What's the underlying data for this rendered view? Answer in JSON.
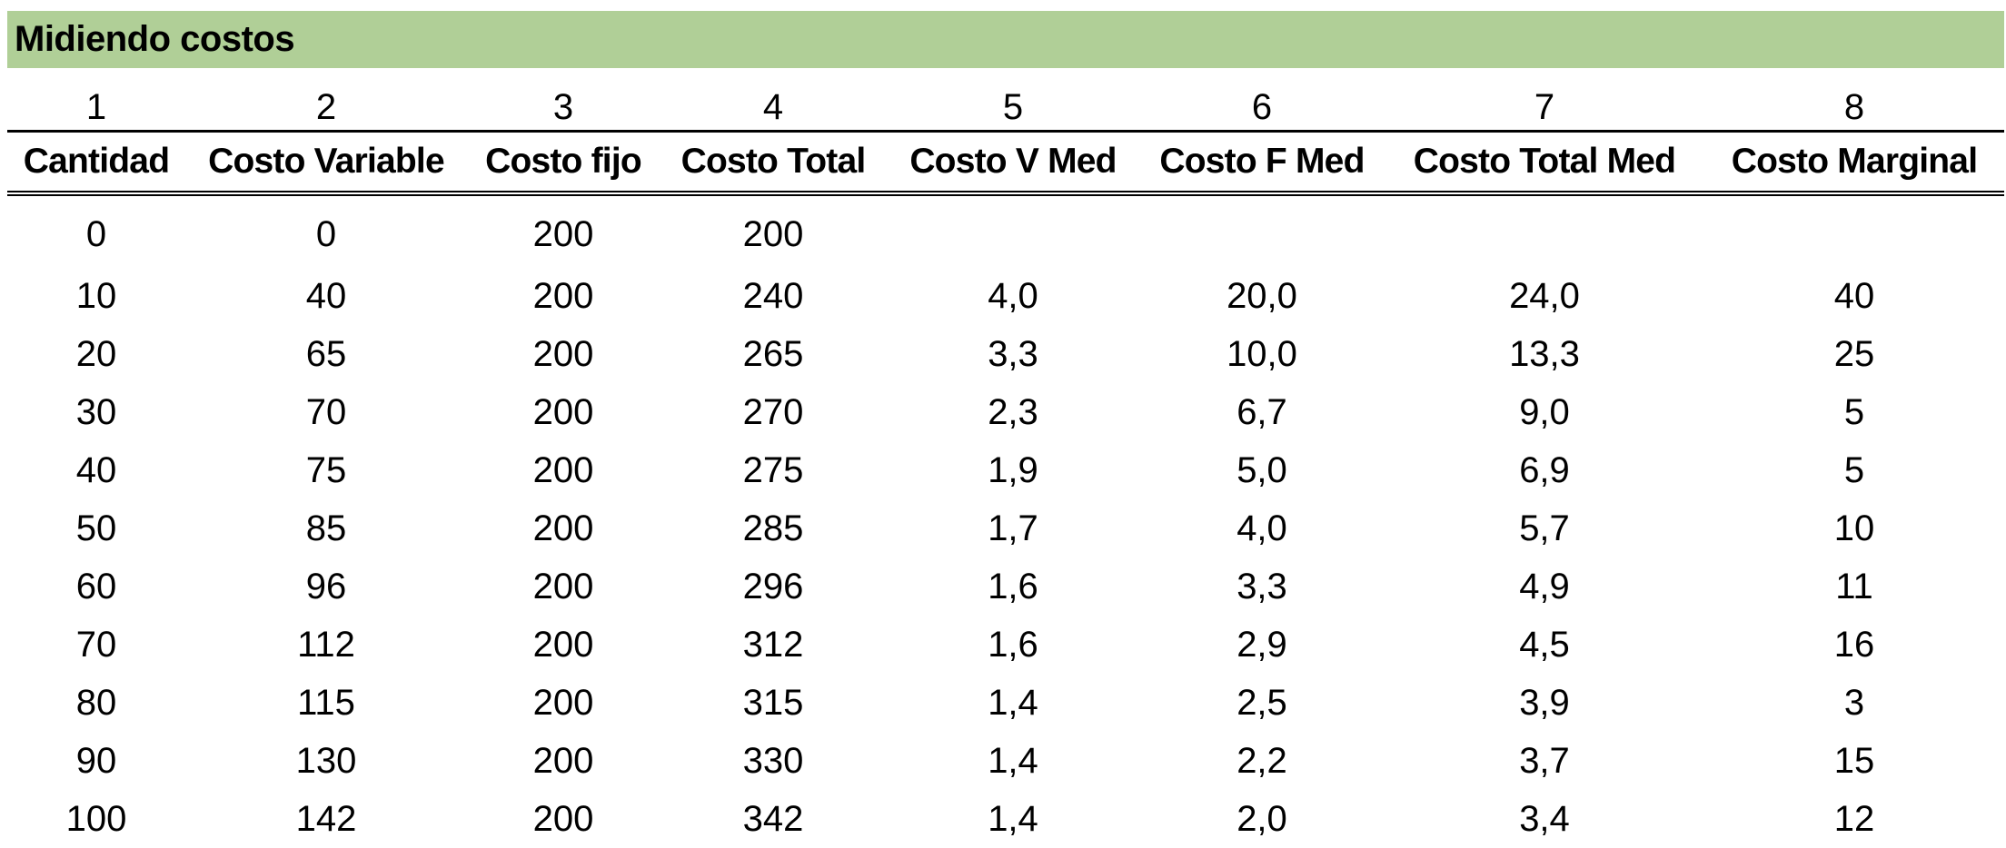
{
  "title": "Midiendo costos",
  "column_numbers": [
    "1",
    "2",
    "3",
    "4",
    "5",
    "6",
    "7",
    "8"
  ],
  "headers": [
    "Cantidad",
    "Costo Variable",
    "Costo fijo",
    "Costo Total",
    "Costo V Med",
    "Costo F Med",
    "Costo Total Med",
    "Costo Marginal"
  ],
  "rows": [
    [
      "0",
      "0",
      "200",
      "200",
      "",
      "",
      "",
      ""
    ],
    [
      "10",
      "40",
      "200",
      "240",
      "4,0",
      "20,0",
      "24,0",
      "40"
    ],
    [
      "20",
      "65",
      "200",
      "265",
      "3,3",
      "10,0",
      "13,3",
      "25"
    ],
    [
      "30",
      "70",
      "200",
      "270",
      "2,3",
      "6,7",
      "9,0",
      "5"
    ],
    [
      "40",
      "75",
      "200",
      "275",
      "1,9",
      "5,0",
      "6,9",
      "5"
    ],
    [
      "50",
      "85",
      "200",
      "285",
      "1,7",
      "4,0",
      "5,7",
      "10"
    ],
    [
      "60",
      "96",
      "200",
      "296",
      "1,6",
      "3,3",
      "4,9",
      "11"
    ],
    [
      "70",
      "112",
      "200",
      "312",
      "1,6",
      "2,9",
      "4,5",
      "16"
    ],
    [
      "80",
      "115",
      "200",
      "315",
      "1,4",
      "2,5",
      "3,9",
      "3"
    ],
    [
      "90",
      "130",
      "200",
      "330",
      "1,4",
      "2,2",
      "3,7",
      "15"
    ],
    [
      "100",
      "142",
      "200",
      "342",
      "1,4",
      "2,0",
      "3,4",
      "12"
    ]
  ],
  "colors": {
    "title_background": "#b0cf97",
    "text": "#000000",
    "rule": "#000000"
  }
}
